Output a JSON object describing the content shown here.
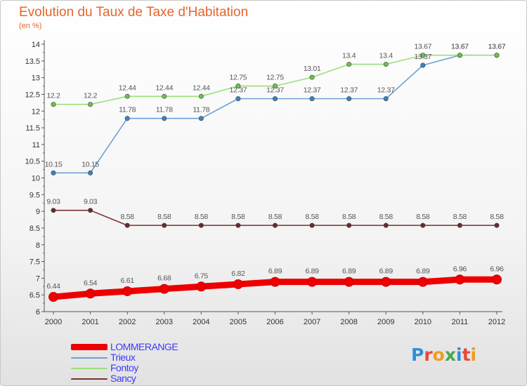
{
  "header": {
    "title": "Evolution du Taux de Taxe d'Habitation",
    "unit": "(en %)"
  },
  "logo": {
    "text": "Proxiti",
    "letter_colors": [
      "#2f8fd6",
      "#e84a3a",
      "#f29a1f",
      "#4aa84a",
      "#2f8fd6",
      "#e84a3a",
      "#f29a1f"
    ]
  },
  "chart_data": {
    "type": "line",
    "title": "Evolution du Taux de Taxe d'Habitation",
    "ylabel": "(en %)",
    "xlabel": "",
    "x": [
      "2000",
      "2001",
      "2002",
      "2003",
      "2004",
      "2005",
      "2006",
      "2007",
      "2008",
      "2009",
      "2010",
      "2011",
      "2012"
    ],
    "ylim": [
      6,
      14
    ],
    "yticks": [
      "6",
      "6.5",
      "7",
      "7.5",
      "8",
      "8.5",
      "9",
      "9.5",
      "10",
      "10.5",
      "11",
      "11.5",
      "12",
      "12.5",
      "13",
      "13.5",
      "14"
    ],
    "grid": false,
    "legend_position": "bottom-left",
    "series": [
      {
        "name": "LOMMERANGE",
        "color": "#ee0000",
        "label_color": "#3a3aff",
        "emphasis": "thick",
        "values": [
          6.44,
          6.54,
          6.61,
          6.68,
          6.75,
          6.82,
          6.89,
          6.89,
          6.89,
          6.89,
          6.89,
          6.96,
          6.96
        ],
        "labels": [
          "6.44",
          "6.54",
          "6.61",
          "6.68",
          "6.75",
          "6.82",
          "6.89",
          "6.89",
          "6.89",
          "6.89",
          "6.89",
          "6.96",
          "6.96"
        ]
      },
      {
        "name": "Trieux",
        "color": "#6ea0d6",
        "marker_color": "#3b82c4",
        "label_color": "#3a3aff",
        "values": [
          10.15,
          10.15,
          11.78,
          11.78,
          11.78,
          12.37,
          12.37,
          12.37,
          12.37,
          12.37,
          13.37,
          13.67,
          13.67
        ],
        "labels": [
          "10.15",
          "10.15",
          "11.78",
          "11.78",
          "11.78",
          "12.37",
          "12.37",
          "12.37",
          "12.37",
          "12.37",
          "13.37",
          "13.67",
          "13.67"
        ]
      },
      {
        "name": "Fontoy",
        "color": "#9ae07a",
        "marker_color": "#6cc24a",
        "label_color": "#3a3aff",
        "values": [
          12.2,
          12.2,
          12.44,
          12.44,
          12.44,
          12.75,
          12.75,
          13.01,
          13.4,
          13.4,
          13.67,
          13.67,
          13.67
        ],
        "labels": [
          "12.2",
          "12.2",
          "12.44",
          "12.44",
          "12.44",
          "12.75",
          "12.75",
          "13.01",
          "13.4",
          "13.4",
          "13.67",
          "13.67",
          "13.67"
        ]
      },
      {
        "name": "Sancy",
        "color": "#7a3030",
        "marker_color": "#6a2a2a",
        "label_color": "#3a3aff",
        "values": [
          9.03,
          9.03,
          8.58,
          8.58,
          8.58,
          8.58,
          8.58,
          8.58,
          8.58,
          8.58,
          8.58,
          8.58,
          8.58
        ],
        "labels": [
          "9.03",
          "9.03",
          "8.58",
          "8.58",
          "8.58",
          "8.58",
          "8.58",
          "8.58",
          "8.58",
          "8.58",
          "8.58",
          "8.58",
          "8.58"
        ]
      }
    ]
  }
}
